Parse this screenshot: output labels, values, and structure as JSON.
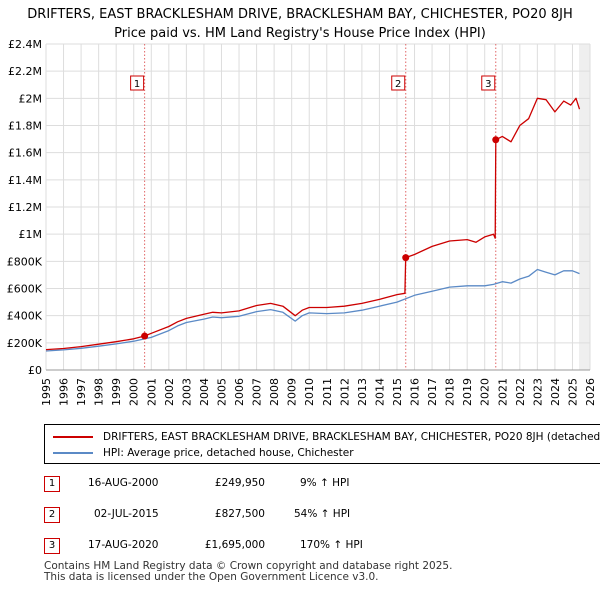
{
  "title_line1": "DRIFTERS, EAST BRACKLESHAM DRIVE, BRACKLESHAM BAY, CHICHESTER, PO20 8JH",
  "title_line2": "Price paid vs. HM Land Registry's House Price Index (HPI)",
  "colors": {
    "property": "#cc0000",
    "hpi": "#5b8ac6",
    "grid": "#dddddd",
    "marker_line": "#e06666"
  },
  "chart_data": {
    "type": "line",
    "title": "DRIFTERS, EAST BRACKLESHAM DRIVE, BRACKLESHAM BAY, CHICHESTER, PO20 8JH",
    "xlim": [
      1995,
      2026
    ],
    "ylim": [
      0,
      2400000
    ],
    "y_ticks": [
      0,
      200000,
      400000,
      600000,
      800000,
      1000000,
      1200000,
      1400000,
      1600000,
      1800000,
      2000000,
      2200000,
      2400000
    ],
    "y_tick_labels": [
      "£0",
      "£200K",
      "£400K",
      "£600K",
      "£800K",
      "£1M",
      "£1.2M",
      "£1.4M",
      "£1.6M",
      "£1.8M",
      "£2M",
      "£2.2M",
      "£2.4M"
    ],
    "x_ticks": [
      1995,
      1996,
      1997,
      1998,
      1999,
      2000,
      2001,
      2002,
      2003,
      2004,
      2005,
      2006,
      2007,
      2008,
      2009,
      2010,
      2011,
      2012,
      2013,
      2014,
      2015,
      2016,
      2017,
      2018,
      2019,
      2020,
      2021,
      2022,
      2023,
      2024,
      2025,
      2026
    ],
    "x_tick_labels": [
      "1995",
      "1996",
      "1997",
      "1998",
      "1999",
      "2000",
      "2001",
      "2002",
      "2003",
      "2004",
      "2005",
      "2006",
      "2007",
      "2008",
      "2009",
      "2010",
      "2011",
      "2012",
      "2013",
      "2014",
      "2015",
      "2016",
      "2017",
      "2018",
      "2019",
      "2020",
      "2021",
      "2022",
      "2023",
      "2024",
      "2025",
      "2026"
    ],
    "grid": true,
    "series": [
      {
        "name": "DRIFTERS, EAST BRACKLESHAM DRIVE, BRACKLESHAM BAY, CHICHESTER, PO20 8JH (detached house)",
        "x": [
          1995.0,
          1996.0,
          1997.0,
          1998.0,
          1999.0,
          2000.0,
          2000.62,
          2001.0,
          2002.0,
          2002.5,
          2003.0,
          2004.0,
          2004.5,
          2005.0,
          2006.0,
          2007.0,
          2007.8,
          2008.5,
          2009.2,
          2009.6,
          2010.0,
          2011.0,
          2012.0,
          2013.0,
          2014.0,
          2015.0,
          2015.45,
          2015.5,
          2016.0,
          2017.0,
          2018.0,
          2019.0,
          2019.5,
          2020.0,
          2020.5,
          2020.6,
          2020.63,
          2021.0,
          2021.5,
          2022.0,
          2022.5,
          2023.0,
          2023.5,
          2024.0,
          2024.5,
          2024.9,
          2025.2,
          2025.4
        ],
        "y": [
          150000,
          158000,
          172000,
          190000,
          208000,
          230000,
          249950,
          270000,
          320000,
          355000,
          380000,
          410000,
          425000,
          420000,
          435000,
          475000,
          490000,
          470000,
          400000,
          440000,
          460000,
          460000,
          470000,
          490000,
          520000,
          555000,
          565000,
          827500,
          850000,
          910000,
          950000,
          960000,
          940000,
          980000,
          1000000,
          970000,
          1695000,
          1720000,
          1680000,
          1800000,
          1850000,
          2000000,
          1990000,
          1900000,
          1980000,
          1950000,
          2000000,
          1920000
        ],
        "color": "#cc0000"
      },
      {
        "name": "HPI: Average price, detached house, Chichester",
        "x": [
          1995.0,
          1996.0,
          1997.0,
          1998.0,
          1999.0,
          2000.0,
          2001.0,
          2002.0,
          2002.5,
          2003.0,
          2004.0,
          2004.5,
          2005.0,
          2006.0,
          2007.0,
          2007.8,
          2008.5,
          2009.2,
          2009.6,
          2010.0,
          2011.0,
          2012.0,
          2013.0,
          2014.0,
          2015.0,
          2016.0,
          2017.0,
          2018.0,
          2019.0,
          2020.0,
          2020.5,
          2021.0,
          2021.5,
          2022.0,
          2022.5,
          2023.0,
          2023.5,
          2024.0,
          2024.5,
          2025.0,
          2025.4
        ],
        "y": [
          140000,
          148000,
          160000,
          175000,
          192000,
          212000,
          240000,
          290000,
          325000,
          350000,
          375000,
          390000,
          385000,
          395000,
          430000,
          445000,
          425000,
          360000,
          400000,
          420000,
          415000,
          420000,
          440000,
          470000,
          500000,
          550000,
          580000,
          610000,
          620000,
          620000,
          630000,
          650000,
          640000,
          670000,
          690000,
          740000,
          720000,
          700000,
          730000,
          730000,
          710000
        ],
        "color": "#5b8ac6"
      }
    ],
    "markers": [
      {
        "label": "1",
        "x": 2000.62,
        "y": 249950
      },
      {
        "label": "2",
        "x": 2015.5,
        "y": 827500
      },
      {
        "label": "3",
        "x": 2020.63,
        "y": 1695000
      }
    ]
  },
  "legend": {
    "property_label": "DRIFTERS, EAST BRACKLESHAM DRIVE, BRACKLESHAM BAY, CHICHESTER, PO20 8JH (detached house)",
    "hpi_label": "HPI: Average price, detached house, Chichester"
  },
  "transactions": [
    {
      "num": "1",
      "date": "16-AUG-2000",
      "price": "£249,950",
      "hpi": "9% ↑ HPI"
    },
    {
      "num": "2",
      "date": "02-JUL-2015",
      "price": "£827,500",
      "hpi": "54% ↑ HPI"
    },
    {
      "num": "3",
      "date": "17-AUG-2020",
      "price": "£1,695,000",
      "hpi": "170% ↑ HPI"
    }
  ],
  "footer": {
    "line1": "Contains HM Land Registry data © Crown copyright and database right 2025.",
    "line2": "This data is licensed under the Open Government Licence v3.0."
  }
}
